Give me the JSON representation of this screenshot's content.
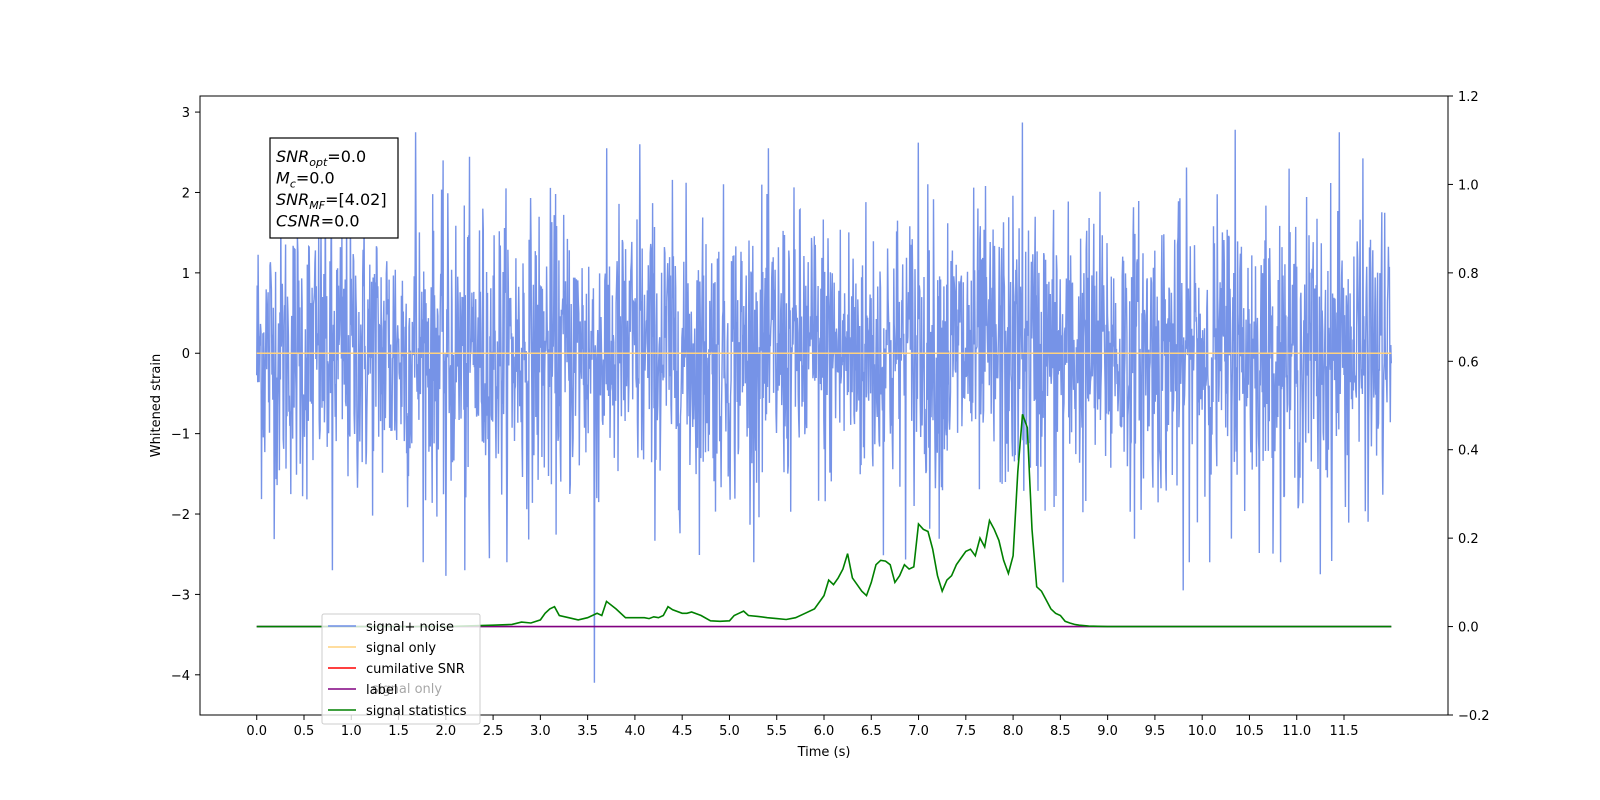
{
  "chart_data": {
    "type": "line",
    "xlabel": "Time (s)",
    "ylabel": "Whitened strain",
    "x_ticks": [
      "0.0",
      "0.5",
      "1.0",
      "1.5",
      "2.0",
      "2.5",
      "3.0",
      "3.5",
      "4.0",
      "4.5",
      "5.0",
      "5.5",
      "6.0",
      "6.5",
      "7.0",
      "7.5",
      "8.0",
      "8.5",
      "9.0",
      "9.5",
      "10.0",
      "10.5",
      "11.0",
      "11.5"
    ],
    "xlim": [
      -0.6,
      12.6
    ],
    "ylim_left": [
      -4.5,
      3.2
    ],
    "y_ticks_left": [
      "−4",
      "−3",
      "−2",
      "−1",
      "0",
      "1",
      "2",
      "3"
    ],
    "ylim_right": [
      -0.2,
      1.2
    ],
    "y_ticks_right": [
      "−0.2",
      "0.0",
      "0.2",
      "0.4",
      "0.6",
      "0.8",
      "1.0",
      "1.2"
    ],
    "annotation": {
      "lines": [
        {
          "base": "SNR",
          "sub": "opt",
          "value": "=0.0"
        },
        {
          "base": "M",
          "sub": "c",
          "value": "=0.0"
        },
        {
          "base": "SNR",
          "sub": "MF",
          "value": "=[4.02]"
        },
        {
          "base": "CSNR",
          "sub": "",
          "value": "=0.0"
        }
      ]
    },
    "legend": {
      "placement": "lower-left",
      "entries": [
        {
          "label": "signal+ noise",
          "color": "#6f8de6"
        },
        {
          "label": "signal only",
          "color": "#ffd27f"
        },
        {
          "label": "cumilative SNR",
          "color": "#ff0000"
        },
        {
          "label": "label",
          "color": "#800080"
        },
        {
          "label": "signal statistics",
          "color": "#008000"
        }
      ],
      "hidden_text": "signal only"
    },
    "series": [
      {
        "name": "signal+ noise",
        "axis": "left",
        "color": "#6f8de6",
        "x_range": [
          0.0,
          12.0
        ],
        "envelope_typical": [
          -1.8,
          1.9
        ],
        "spikes": [
          {
            "x": 3.57,
            "y": -4.1
          },
          {
            "x": 8.1,
            "y": 2.87
          },
          {
            "x": 10.35,
            "y": 2.78
          },
          {
            "x": 1.68,
            "y": 2.75
          },
          {
            "x": 2.0,
            "y": -2.77
          },
          {
            "x": 9.8,
            "y": -2.95
          },
          {
            "x": 8.53,
            "y": -2.85
          },
          {
            "x": 11.45,
            "y": 2.75
          },
          {
            "x": 11.25,
            "y": -2.75
          },
          {
            "x": 0.8,
            "y": -2.7
          },
          {
            "x": 2.2,
            "y": -2.7
          },
          {
            "x": 7.0,
            "y": 2.62
          },
          {
            "x": 4.05,
            "y": 2.6
          },
          {
            "x": 12.05,
            "y": 2.6
          }
        ]
      },
      {
        "name": "signal only",
        "axis": "left",
        "color": "#ffd27f",
        "x": [
          0.0,
          12.0
        ],
        "y": [
          0.0,
          0.0
        ]
      },
      {
        "name": "label",
        "axis": "right",
        "color": "#800080",
        "x": [
          0.0,
          12.0
        ],
        "y": [
          0.0,
          0.0
        ]
      },
      {
        "name": "signal statistics",
        "axis": "right",
        "color": "#008000",
        "x": [
          0.0,
          2.0,
          2.5,
          2.7,
          2.8,
          2.9,
          3.0,
          3.05,
          3.1,
          3.15,
          3.2,
          3.3,
          3.4,
          3.5,
          3.6,
          3.65,
          3.7,
          3.8,
          3.9,
          4.0,
          4.1,
          4.15,
          4.2,
          4.25,
          4.3,
          4.35,
          4.4,
          4.5,
          4.55,
          4.6,
          4.7,
          4.8,
          4.9,
          5.0,
          5.05,
          5.1,
          5.15,
          5.2,
          5.3,
          5.4,
          5.5,
          5.6,
          5.7,
          5.8,
          5.9,
          6.0,
          6.05,
          6.1,
          6.15,
          6.2,
          6.25,
          6.3,
          6.35,
          6.4,
          6.45,
          6.5,
          6.55,
          6.6,
          6.65,
          6.7,
          6.75,
          6.8,
          6.85,
          6.9,
          6.95,
          7.0,
          7.05,
          7.1,
          7.15,
          7.2,
          7.25,
          7.3,
          7.35,
          7.4,
          7.45,
          7.5,
          7.55,
          7.6,
          7.65,
          7.7,
          7.75,
          7.8,
          7.85,
          7.9,
          7.95,
          8.0,
          8.05,
          8.1,
          8.15,
          8.2,
          8.25,
          8.3,
          8.35,
          8.4,
          8.45,
          8.5,
          8.55,
          8.6,
          8.65,
          8.7,
          8.8,
          9.0,
          9.5,
          12.0
        ],
        "y": [
          0.0,
          0.0,
          0.003,
          0.005,
          0.01,
          0.008,
          0.015,
          0.03,
          0.04,
          0.045,
          0.025,
          0.02,
          0.015,
          0.02,
          0.03,
          0.025,
          0.057,
          0.04,
          0.02,
          0.02,
          0.02,
          0.018,
          0.022,
          0.02,
          0.025,
          0.045,
          0.038,
          0.03,
          0.03,
          0.033,
          0.025,
          0.013,
          0.012,
          0.013,
          0.025,
          0.03,
          0.035,
          0.025,
          0.023,
          0.02,
          0.018,
          0.016,
          0.02,
          0.03,
          0.04,
          0.07,
          0.105,
          0.095,
          0.11,
          0.13,
          0.165,
          0.11,
          0.095,
          0.08,
          0.07,
          0.1,
          0.14,
          0.15,
          0.148,
          0.14,
          0.1,
          0.115,
          0.14,
          0.13,
          0.135,
          0.232,
          0.22,
          0.215,
          0.175,
          0.115,
          0.08,
          0.105,
          0.115,
          0.14,
          0.155,
          0.17,
          0.175,
          0.16,
          0.2,
          0.18,
          0.24,
          0.22,
          0.195,
          0.15,
          0.12,
          0.16,
          0.35,
          0.48,
          0.45,
          0.22,
          0.09,
          0.08,
          0.06,
          0.04,
          0.03,
          0.025,
          0.012,
          0.008,
          0.005,
          0.003,
          0.001,
          0.0,
          0.0,
          0.0
        ]
      }
    ],
    "grid": false
  }
}
